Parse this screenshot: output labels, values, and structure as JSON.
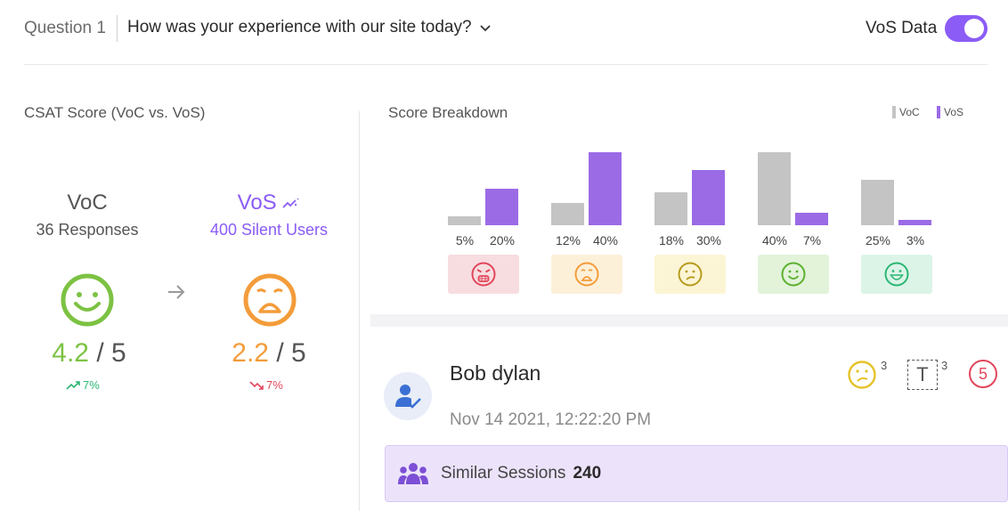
{
  "header": {
    "question_label": "Question 1",
    "question_text": "How was your experience with our site today?",
    "toggle_label": "VoS Data",
    "toggle_on": true
  },
  "csat": {
    "title": "CSAT Score (VoC vs. VoS)",
    "voc": {
      "name": "VoC",
      "sub": "36 Responses",
      "score": "4.2",
      "out_of": "/ 5",
      "trend": "7%",
      "trend_dir": "up"
    },
    "vos": {
      "name": "VoS",
      "sub": "400 Silent Users",
      "score": "2.2",
      "out_of": "/ 5",
      "trend": "7%",
      "trend_dir": "down"
    }
  },
  "breakdown": {
    "title": "Score Breakdown",
    "legend": {
      "voc": "VoC",
      "vos": "VoS"
    },
    "colors": {
      "voc": "#c4c4c4",
      "vos": "#9b6be6"
    }
  },
  "chart_data": {
    "type": "bar",
    "title": "Score Breakdown",
    "categories": [
      "Very dissatisfied",
      "Dissatisfied",
      "Neutral",
      "Satisfied",
      "Very satisfied"
    ],
    "series": [
      {
        "name": "VoC",
        "values": [
          5,
          12,
          18,
          40,
          25
        ],
        "labels": [
          "5%",
          "12%",
          "18%",
          "40%",
          "25%"
        ]
      },
      {
        "name": "VoS",
        "values": [
          20,
          40,
          30,
          7,
          3
        ],
        "labels": [
          "20%",
          "40%",
          "30%",
          "7%",
          "3%"
        ]
      }
    ]
  },
  "session": {
    "name": "Bob dylan",
    "timestamp": "Nov 14 2021, 12:22:20 PM",
    "badges": {
      "face_count": "3",
      "text_count": "3",
      "rating": "5",
      "text_icon": "T"
    },
    "similar_label": "Similar Sessions",
    "similar_count": "240"
  }
}
